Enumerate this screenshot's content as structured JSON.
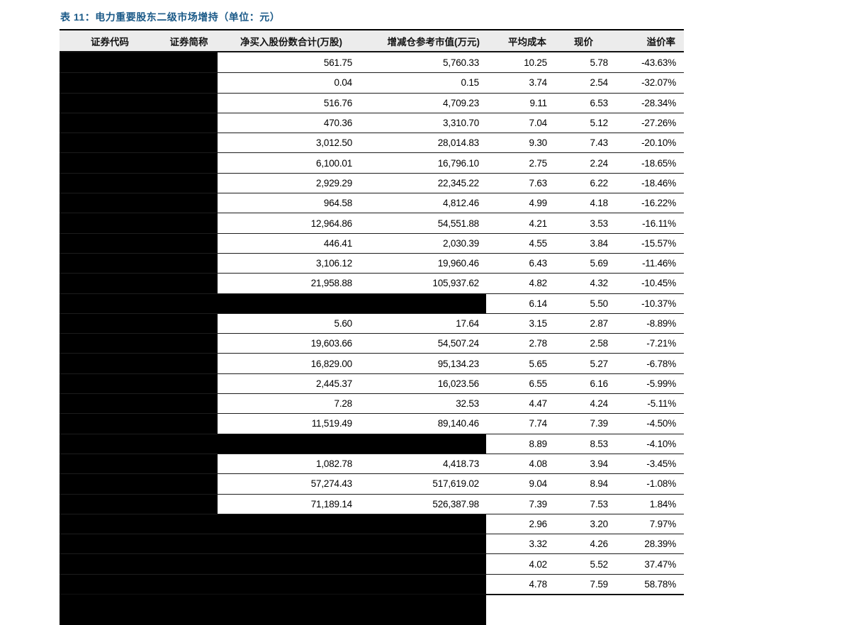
{
  "page": {
    "title": "表 11：电力重要股东二级市场增持（单位：元）"
  },
  "colors": {
    "title_blue": "#1b5a88",
    "header_bg": "#ececec",
    "rule_line": "#1c1c1c",
    "redaction_black": "#000000"
  },
  "table": {
    "headers": [
      "证券代码",
      "证券简称",
      "净买入股份数合计(万股)",
      "增减仓参考市值(万元)",
      "平均成本",
      "现价",
      "溢价率"
    ],
    "redaction_note_columns_1_2": "all rows redacted with black blocks",
    "rows": [
      {
        "net_shares": "561.75",
        "ref_value": "5,760.33",
        "avg_cost": "10.25",
        "price": "5.78",
        "premium": "-43.63%",
        "values_redacted": false
      },
      {
        "net_shares": "0.04",
        "ref_value": "0.15",
        "avg_cost": "3.74",
        "price": "2.54",
        "premium": "-32.07%",
        "values_redacted": false
      },
      {
        "net_shares": "516.76",
        "ref_value": "4,709.23",
        "avg_cost": "9.11",
        "price": "6.53",
        "premium": "-28.34%",
        "values_redacted": false
      },
      {
        "net_shares": "470.36",
        "ref_value": "3,310.70",
        "avg_cost": "7.04",
        "price": "5.12",
        "premium": "-27.26%",
        "values_redacted": false
      },
      {
        "net_shares": "3,012.50",
        "ref_value": "28,014.83",
        "avg_cost": "9.30",
        "price": "7.43",
        "premium": "-20.10%",
        "values_redacted": false
      },
      {
        "net_shares": "6,100.01",
        "ref_value": "16,796.10",
        "avg_cost": "2.75",
        "price": "2.24",
        "premium": "-18.65%",
        "values_redacted": false
      },
      {
        "net_shares": "2,929.29",
        "ref_value": "22,345.22",
        "avg_cost": "7.63",
        "price": "6.22",
        "premium": "-18.46%",
        "values_redacted": false
      },
      {
        "net_shares": "964.58",
        "ref_value": "4,812.46",
        "avg_cost": "4.99",
        "price": "4.18",
        "premium": "-16.22%",
        "values_redacted": false
      },
      {
        "net_shares": "12,964.86",
        "ref_value": "54,551.88",
        "avg_cost": "4.21",
        "price": "3.53",
        "premium": "-16.11%",
        "values_redacted": false
      },
      {
        "net_shares": "446.41",
        "ref_value": "2,030.39",
        "avg_cost": "4.55",
        "price": "3.84",
        "premium": "-15.57%",
        "values_redacted": false
      },
      {
        "net_shares": "3,106.12",
        "ref_value": "19,960.46",
        "avg_cost": "6.43",
        "price": "5.69",
        "premium": "-11.46%",
        "values_redacted": false
      },
      {
        "net_shares": "21,958.88",
        "ref_value": "105,937.62",
        "avg_cost": "4.82",
        "price": "4.32",
        "premium": "-10.45%",
        "values_redacted": false
      },
      {
        "net_shares": "",
        "ref_value": "",
        "avg_cost": "6.14",
        "price": "5.50",
        "premium": "-10.37%",
        "values_redacted": true
      },
      {
        "net_shares": "5.60",
        "ref_value": "17.64",
        "avg_cost": "3.15",
        "price": "2.87",
        "premium": "-8.89%",
        "values_redacted": false
      },
      {
        "net_shares": "19,603.66",
        "ref_value": "54,507.24",
        "avg_cost": "2.78",
        "price": "2.58",
        "premium": "-7.21%",
        "values_redacted": false
      },
      {
        "net_shares": "16,829.00",
        "ref_value": "95,134.23",
        "avg_cost": "5.65",
        "price": "5.27",
        "premium": "-6.78%",
        "values_redacted": false
      },
      {
        "net_shares": "2,445.37",
        "ref_value": "16,023.56",
        "avg_cost": "6.55",
        "price": "6.16",
        "premium": "-5.99%",
        "values_redacted": false
      },
      {
        "net_shares": "7.28",
        "ref_value": "32.53",
        "avg_cost": "4.47",
        "price": "4.24",
        "premium": "-5.11%",
        "values_redacted": false
      },
      {
        "net_shares": "11,519.49",
        "ref_value": "89,140.46",
        "avg_cost": "7.74",
        "price": "7.39",
        "premium": "-4.50%",
        "values_redacted": false
      },
      {
        "net_shares": "",
        "ref_value": "",
        "avg_cost": "8.89",
        "price": "8.53",
        "premium": "-4.10%",
        "values_redacted": true
      },
      {
        "net_shares": "1,082.78",
        "ref_value": "4,418.73",
        "avg_cost": "4.08",
        "price": "3.94",
        "premium": "-3.45%",
        "values_redacted": false
      },
      {
        "net_shares": "57,274.43",
        "ref_value": "517,619.02",
        "avg_cost": "9.04",
        "price": "8.94",
        "premium": "-1.08%",
        "values_redacted": false
      },
      {
        "net_shares": "71,189.14",
        "ref_value": "526,387.98",
        "avg_cost": "7.39",
        "price": "7.53",
        "premium": "1.84%",
        "values_redacted": false
      },
      {
        "net_shares": "",
        "ref_value": "",
        "avg_cost": "2.96",
        "price": "3.20",
        "premium": "7.97%",
        "values_redacted": true
      },
      {
        "net_shares": "",
        "ref_value": "",
        "avg_cost": "3.32",
        "price": "4.26",
        "premium": "28.39%",
        "values_redacted": true
      },
      {
        "net_shares": "",
        "ref_value": "",
        "avg_cost": "4.02",
        "price": "5.52",
        "premium": "37.47%",
        "values_redacted": true
      },
      {
        "net_shares": "",
        "ref_value": "",
        "avg_cost": "4.78",
        "price": "7.59",
        "premium": "58.78%",
        "values_redacted": true
      }
    ]
  }
}
